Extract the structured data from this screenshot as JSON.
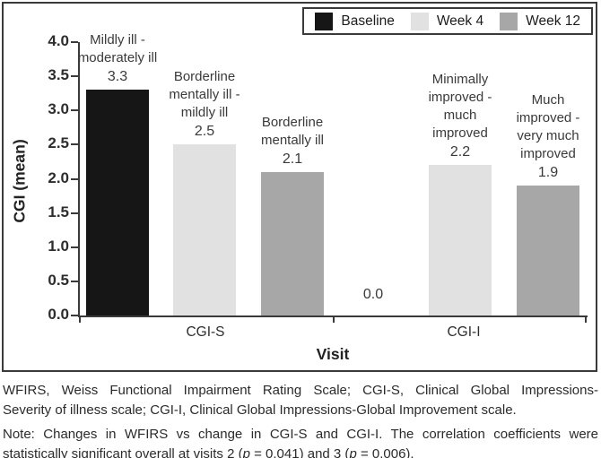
{
  "chart_data": {
    "type": "bar",
    "title": "",
    "xlabel": "Visit",
    "ylabel": "CGI (mean)",
    "ylim": [
      0,
      4.0
    ],
    "ytick_step": 0.5,
    "grid": false,
    "legend_position": "top-right",
    "categories": [
      "CGI-S",
      "CGI-I"
    ],
    "series": [
      {
        "name": "Baseline",
        "color": "#161616",
        "values": [
          3.3,
          0.0
        ]
      },
      {
        "name": "Week 4",
        "color": "#e1e1e1",
        "values": [
          2.5,
          2.2
        ]
      },
      {
        "name": "Week 12",
        "color": "#a7a7a7",
        "values": [
          2.1,
          1.9
        ]
      }
    ],
    "bars": [
      {
        "category": "CGI-S",
        "series": "Baseline",
        "value": 3.3,
        "value_label": "3.3",
        "desc": "Mildly ill -\nmoderately ill"
      },
      {
        "category": "CGI-S",
        "series": "Week 4",
        "value": 2.5,
        "value_label": "2.5",
        "desc": "Borderline\nmentally ill -\nmildly ill"
      },
      {
        "category": "CGI-S",
        "series": "Week 12",
        "value": 2.1,
        "value_label": "2.1",
        "desc": "Borderline\nmentally ill"
      },
      {
        "category": "CGI-I",
        "series": "Baseline",
        "value": 0.0,
        "value_label": "0.0",
        "desc": ""
      },
      {
        "category": "CGI-I",
        "series": "Week 4",
        "value": 2.2,
        "value_label": "2.2",
        "desc": "Minimally\nimproved -\nmuch\nimproved"
      },
      {
        "category": "CGI-I",
        "series": "Week 12",
        "value": 1.9,
        "value_label": "1.9",
        "desc": "Much\nimproved -\nvery much\nimproved"
      }
    ]
  },
  "footnotes": {
    "abbr_line1": "WFIRS, Weiss Functional Impairment Rating Scale; CGI-S, Clinical Global Impressions-",
    "abbr_line2": "Severity of illness scale; CGI-I, Clinical Global Impressions-Global Improvement scale.",
    "note_line1": "Note: Changes in WFIRS vs change in CGI-S and CGI-I. The correlation coefficients were",
    "note_line2": {
      "part1": "statistically significant overall at visits 2 (",
      "p1": "p",
      "part2": " = 0.041) and 3 (",
      "p2": "p",
      "part3": " = 0.006)."
    }
  }
}
